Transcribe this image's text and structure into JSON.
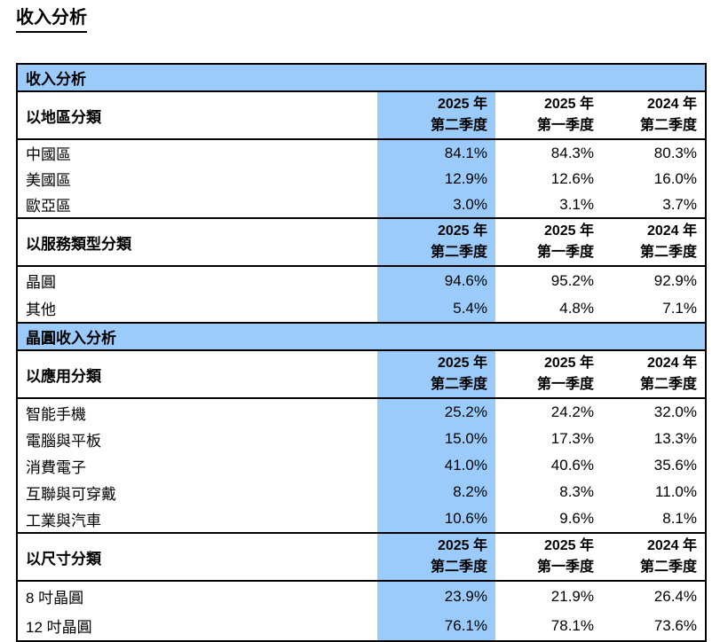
{
  "page_title": "收入分析",
  "colors": {
    "highlight_blue": "#9ACBFA",
    "border_black": "#000000"
  },
  "table": {
    "banners": {
      "revenue": "收入分析",
      "wafer": "晶圓收入分析"
    },
    "column_headers": [
      {
        "line1": "2025 年",
        "line2": "第二季度"
      },
      {
        "line1": "2025 年",
        "line2": "第一季度"
      },
      {
        "line1": "2024 年",
        "line2": "第二季度"
      }
    ],
    "sections": [
      {
        "label": "以地區分類",
        "rows": [
          {
            "label": "中國區",
            "values": [
              "84.1%",
              "84.3%",
              "80.3%"
            ]
          },
          {
            "label": "美國區",
            "values": [
              "12.9%",
              "12.6%",
              "16.0%"
            ]
          },
          {
            "label": "歐亞區",
            "values": [
              "3.0%",
              "3.1%",
              "3.7%"
            ]
          }
        ]
      },
      {
        "label": "以服務類型分類",
        "rows": [
          {
            "label": "晶圓",
            "values": [
              "94.6%",
              "95.2%",
              "92.9%"
            ]
          },
          {
            "label": "其他",
            "values": [
              "5.4%",
              "4.8%",
              "7.1%"
            ]
          }
        ]
      },
      {
        "label": "以應用分類",
        "rows": [
          {
            "label": "智能手機",
            "values": [
              "25.2%",
              "24.2%",
              "32.0%"
            ]
          },
          {
            "label": "電腦與平板",
            "values": [
              "15.0%",
              "17.3%",
              "13.3%"
            ]
          },
          {
            "label": "消費電子",
            "values": [
              "41.0%",
              "40.6%",
              "35.6%"
            ]
          },
          {
            "label": "互聯與可穿戴",
            "values": [
              "8.2%",
              "8.3%",
              "11.0%"
            ]
          },
          {
            "label": "工業與汽車",
            "values": [
              "10.6%",
              "9.6%",
              "8.1%"
            ]
          }
        ]
      },
      {
        "label": "以尺寸分類",
        "rows": [
          {
            "label": "8 吋晶圓",
            "values": [
              "23.9%",
              "21.9%",
              "26.4%"
            ]
          },
          {
            "label": "12 吋晶圓",
            "values": [
              "76.1%",
              "78.1%",
              "73.6%"
            ]
          }
        ]
      }
    ]
  }
}
